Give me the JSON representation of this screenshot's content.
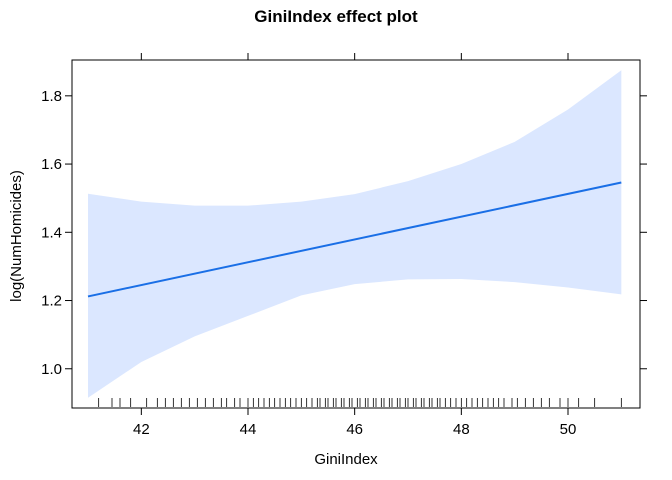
{
  "chart_data": {
    "type": "line",
    "title": "GiniIndex effect plot",
    "xlabel": "GiniIndex",
    "ylabel": "log(NumHomicides)",
    "xlim": [
      40.7,
      51.35
    ],
    "ylim": [
      0.885,
      1.905
    ],
    "x_ticks": [
      42,
      44,
      46,
      48,
      50
    ],
    "y_ticks": [
      1.0,
      1.2,
      1.4,
      1.6,
      1.8
    ],
    "grid": false,
    "legend": "none",
    "series": [
      {
        "x": [
          41.0,
          51.0
        ],
        "y": [
          1.212,
          1.546
        ]
      }
    ],
    "confidence_band": {
      "x": [
        41.0,
        42.0,
        43.0,
        44.0,
        45.0,
        46.0,
        47.0,
        48.0,
        49.0,
        50.0,
        51.0
      ],
      "lower": [
        0.915,
        1.02,
        1.095,
        1.155,
        1.215,
        1.248,
        1.262,
        1.263,
        1.254,
        1.238,
        1.218
      ],
      "upper": [
        1.513,
        1.49,
        1.478,
        1.478,
        1.49,
        1.512,
        1.55,
        1.6,
        1.665,
        1.76,
        1.875
      ]
    },
    "rug": [
      41.2,
      41.45,
      41.6,
      41.8,
      42.1,
      42.3,
      42.45,
      42.6,
      42.75,
      42.9,
      43.05,
      43.2,
      43.35,
      43.5,
      43.6,
      43.75,
      43.85,
      44.0,
      44.1,
      44.2,
      44.3,
      44.4,
      44.5,
      44.6,
      44.7,
      44.8,
      44.9,
      45.0,
      45.1,
      45.2,
      45.3,
      45.35,
      45.45,
      45.5,
      45.6,
      45.65,
      45.75,
      45.8,
      45.9,
      45.95,
      46.05,
      46.1,
      46.2,
      46.25,
      46.35,
      46.4,
      46.5,
      46.55,
      46.65,
      46.7,
      46.8,
      46.85,
      46.95,
      47.0,
      47.1,
      47.15,
      47.25,
      47.3,
      47.4,
      47.45,
      47.55,
      47.6,
      47.7,
      47.8,
      47.9,
      48.0,
      48.1,
      48.2,
      48.3,
      48.4,
      48.5,
      48.6,
      48.7,
      48.8,
      48.95,
      49.05,
      49.2,
      49.35,
      49.5,
      49.65,
      49.85,
      50.0,
      50.2,
      50.5,
      51.0
    ],
    "colors": {
      "line": "#1a6fe6",
      "band": "#dbe7ff",
      "frame": "#000000"
    }
  }
}
